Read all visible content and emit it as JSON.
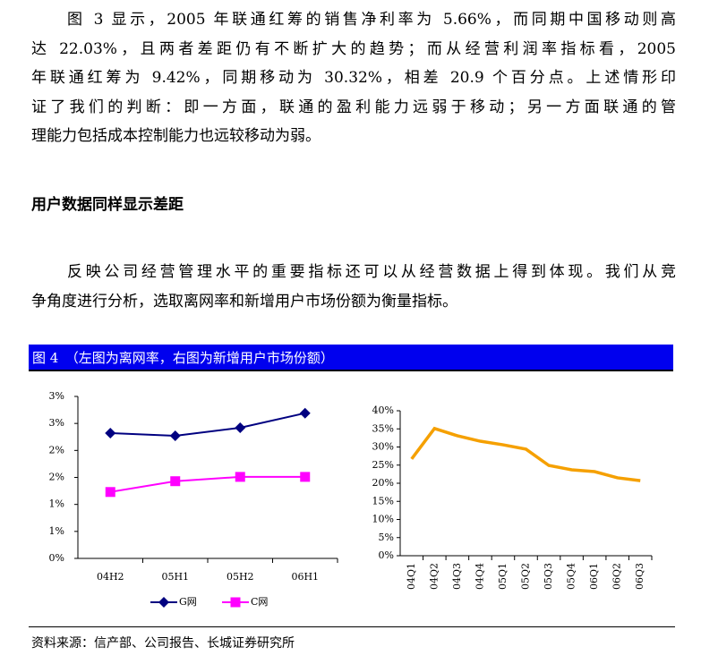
{
  "paragraph_1": [
    "图 3 显示，2005 年联通红筹的销售净利率为 5.66%，而同期中国移动则高",
    "达 22.03%，且两者差距仍有不断扩大的趋势；而从经营利润率指标看，2005",
    "年联通红筹为 9.42%，同期移动为 30.32%，相差 20.9 个百分点。上述情形印",
    "证了我们的判断：即一方面，联通的盈利能力远弱于移动；另一方面联通的管",
    "理能力包括成本控制能力也远较移动为弱。"
  ],
  "heading": "用户数据同样显示差距",
  "paragraph_2": [
    "反映公司经营管理水平的重要指标还可以从经营数据上得到体现。我们从竞",
    "争角度进行分析，选取离网率和新增用户市场份额为衡量指标。"
  ],
  "figure_caption": "图 4　（左图为离网率，右图为新增用户市场份额）",
  "chart_data": [
    {
      "type": "line",
      "categories": [
        "04H2",
        "05H1",
        "05H2",
        "06H1"
      ],
      "series": [
        {
          "name": "G网",
          "color": "#000080",
          "marker": "diamond",
          "values": [
            2.32,
            2.27,
            2.42,
            2.69
          ]
        },
        {
          "name": "C网",
          "color": "#ff00ff",
          "marker": "square",
          "values": [
            1.23,
            1.43,
            1.51,
            1.51
          ]
        }
      ],
      "ylim": [
        0,
        3
      ],
      "yticks": [
        {
          "value": 0,
          "label": "0%"
        },
        {
          "value": 0.5,
          "label": "1%"
        },
        {
          "value": 1,
          "label": "1%"
        },
        {
          "value": 1.5,
          "label": "2%"
        },
        {
          "value": 2,
          "label": "2%"
        },
        {
          "value": 2.5,
          "label": "3%"
        },
        {
          "value": 3,
          "label": "3%"
        }
      ],
      "legend": "bottom"
    },
    {
      "type": "line",
      "categories": [
        "04Q1",
        "04Q2",
        "04Q3",
        "04Q4",
        "05Q1",
        "05Q2",
        "05Q3",
        "05Q4",
        "06Q1",
        "06Q2",
        "06Q3"
      ],
      "color": "#f5a000",
      "values": [
        26.7,
        35.1,
        33.1,
        31.6,
        30.6,
        29.4,
        24.9,
        23.7,
        23.2,
        21.5,
        20.7
      ],
      "ylim": [
        0,
        40
      ],
      "yticks": [
        {
          "value": 0,
          "label": "0%"
        },
        {
          "value": 5,
          "label": "5%"
        },
        {
          "value": 10,
          "label": "10%"
        },
        {
          "value": 15,
          "label": "15%"
        },
        {
          "value": 20,
          "label": "20%"
        },
        {
          "value": 25,
          "label": "25%"
        },
        {
          "value": 30,
          "label": "30%"
        },
        {
          "value": 35,
          "label": "35%"
        },
        {
          "value": 40,
          "label": "40%"
        }
      ]
    }
  ],
  "source": "资料来源：信产部、公司报告、长城证券研究所"
}
